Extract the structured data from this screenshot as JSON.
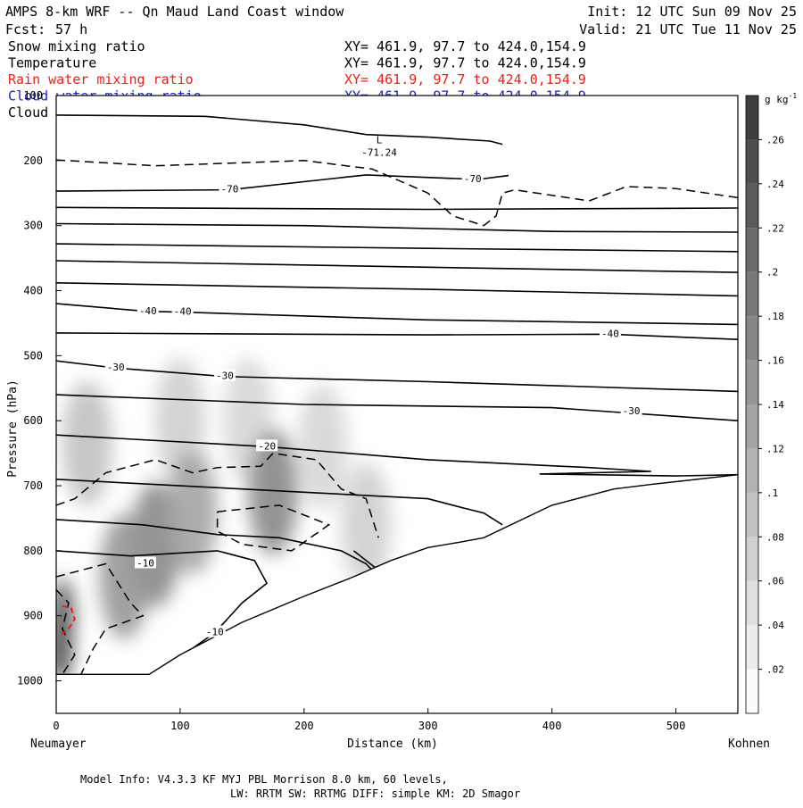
{
  "header": {
    "title": "AMPS 8-km WRF -- Qn Maud Land Coast window",
    "fcst_label": "Fcst:",
    "fcst_value": "57 h",
    "init": "Init: 12 UTC Sun 09 Nov 25",
    "valid": "Valid: 21 UTC Tue 11 Nov 25"
  },
  "fields": [
    {
      "name": "Snow mixing ratio",
      "coords": "XY= 461.9, 97.7 to 424.0,154.9",
      "color": "#000000"
    },
    {
      "name": "Temperature",
      "coords": "XY= 461.9, 97.7 to 424.0,154.9",
      "color": "#000000"
    },
    {
      "name": "Rain water mixing ratio",
      "coords": "XY= 461.9, 97.7 to 424.0,154.9",
      "color": "#e8221a"
    },
    {
      "name": "Cloud water mixing ratio",
      "coords": "XY= 461.9, 97.7 to 424.0,154.9",
      "color": "#1d23b8"
    },
    {
      "name": "Cloud ice mixing ratio",
      "coords": "XY= 461.9, 97.7 to 424.0,154.9",
      "color": "#000000"
    }
  ],
  "footer": {
    "line1": "Model Info: V4.3.3   KF      MYJ PBL  Morrison              8.0 km,  60 levels,",
    "line2": "LW: RRTM SW: RRTMG   DIFF: simple KM: 2D Smagor"
  },
  "chart_data": {
    "type": "cross-section",
    "xlabel": "Distance (km)",
    "ylabel": "Pressure (hPa)",
    "xlim": [
      0,
      550
    ],
    "ylim": [
      1050,
      100
    ],
    "x_ticks": [
      0,
      100,
      200,
      300,
      400,
      500
    ],
    "y_ticks": [
      1000,
      900,
      800,
      700,
      600,
      500,
      400,
      300,
      200,
      100
    ],
    "x_start_label": "Neumayer",
    "x_end_label": "Kohnen",
    "colorbar": {
      "unit_label": "g kg",
      "unit_exp": "-1",
      "ticks": [
        ".02",
        ".04",
        ".06",
        ".08",
        ".1",
        ".12",
        ".14",
        ".16",
        ".18",
        ".2",
        ".22",
        ".24",
        ".26"
      ],
      "max": 0.28
    },
    "terrain": [
      [
        0,
        990
      ],
      [
        75,
        990
      ],
      [
        100,
        960
      ],
      [
        150,
        910
      ],
      [
        200,
        870
      ],
      [
        240,
        840
      ],
      [
        270,
        815
      ],
      [
        300,
        795
      ],
      [
        325,
        787
      ],
      [
        345,
        780
      ],
      [
        400,
        730
      ],
      [
        450,
        705
      ],
      [
        480,
        698
      ],
      [
        550,
        683
      ]
    ],
    "snow_blobs": [
      {
        "x": 25,
        "p": 635,
        "value": 0.08
      },
      {
        "x": 100,
        "p": 600,
        "value": 0.06
      },
      {
        "x": 155,
        "p": 600,
        "value": 0.05
      },
      {
        "x": 215,
        "p": 640,
        "value": 0.05
      },
      {
        "x": 80,
        "p": 790,
        "value": 0.16
      },
      {
        "x": 55,
        "p": 840,
        "value": 0.14
      },
      {
        "x": 175,
        "p": 710,
        "value": 0.16
      },
      {
        "x": 110,
        "p": 740,
        "value": 0.12
      },
      {
        "x": 3,
        "p": 945,
        "value": 0.26
      },
      {
        "x": 5,
        "p": 900,
        "value": 0.22
      },
      {
        "x": 250,
        "p": 760,
        "value": 0.06
      }
    ],
    "isotherm_labels": [
      {
        "x": 140,
        "p": 245,
        "text": "-70"
      },
      {
        "x": 336,
        "p": 229,
        "text": "-70"
      },
      {
        "x": 74,
        "p": 432,
        "text": "-40"
      },
      {
        "x": 102,
        "p": 433,
        "text": "-40"
      },
      {
        "x": 447,
        "p": 467,
        "text": "-40"
      },
      {
        "x": 48,
        "p": 519,
        "text": "-30"
      },
      {
        "x": 136,
        "p": 532,
        "text": "-30"
      },
      {
        "x": 464,
        "p": 586,
        "text": "-30"
      },
      {
        "x": 170,
        "p": 640,
        "text": "-20"
      },
      {
        "x": 72,
        "p": 820,
        "text": "-10"
      },
      {
        "x": 128,
        "p": 926,
        "text": "-10"
      }
    ],
    "low_center": {
      "x": 252,
      "p": 194,
      "symbol": "L",
      "value": "-71.24"
    }
  }
}
